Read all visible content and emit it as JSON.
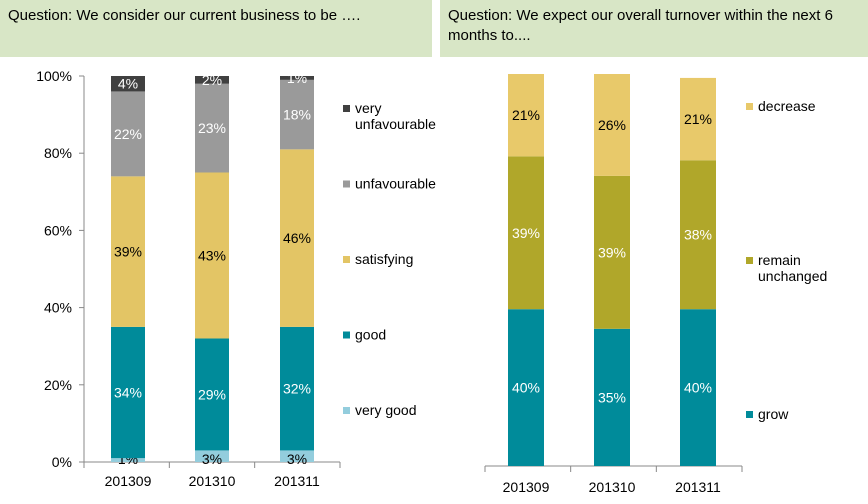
{
  "chart_data": [
    {
      "type": "bar",
      "stacked": true,
      "title": "Question: We consider our current business to be ….",
      "categories": [
        "201309",
        "201310",
        "201311"
      ],
      "ylim": [
        0,
        100
      ],
      "yticks": [
        "0%",
        "20%",
        "40%",
        "60%",
        "80%",
        "100%"
      ],
      "legend_position": "right",
      "series": [
        {
          "name": "very good",
          "values": [
            1,
            3,
            3
          ],
          "labels": [
            "1%",
            "3%",
            "3%"
          ],
          "color": "#93cddd"
        },
        {
          "name": "good",
          "values": [
            34,
            29,
            32
          ],
          "labels": [
            "34%",
            "29%",
            "32%"
          ],
          "color": "#008b9a"
        },
        {
          "name": "satisfying",
          "values": [
            39,
            43,
            46
          ],
          "labels": [
            "39%",
            "43%",
            "46%"
          ],
          "color": "#e3c565"
        },
        {
          "name": "unfavourable",
          "values": [
            22,
            23,
            18
          ],
          "labels": [
            "22%",
            "23%",
            "18%"
          ],
          "color": "#9a9a9a"
        },
        {
          "name": "very unfavourable",
          "values": [
            4,
            2,
            1
          ],
          "labels": [
            "4%",
            "2%",
            "1%"
          ],
          "color": "#404040"
        }
      ]
    },
    {
      "type": "bar",
      "stacked": true,
      "title": "Question: We expect our overall turnover within the next 6 months to....",
      "categories": [
        "201309",
        "201310",
        "201311"
      ],
      "ylim": [
        0,
        100
      ],
      "legend_position": "right",
      "series": [
        {
          "name": "grow",
          "values": [
            40,
            35,
            40
          ],
          "labels": [
            "40%",
            "35%",
            "40%"
          ],
          "color": "#008b9a"
        },
        {
          "name": "remain unchanged",
          "values": [
            39,
            39,
            38
          ],
          "labels": [
            "39%",
            "39%",
            "38%"
          ],
          "color": "#b0a72a"
        },
        {
          "name": "decrease",
          "values": [
            21,
            26,
            21
          ],
          "labels": [
            "21%",
            "26%",
            "21%"
          ],
          "color": "#e8c96a"
        }
      ]
    }
  ]
}
